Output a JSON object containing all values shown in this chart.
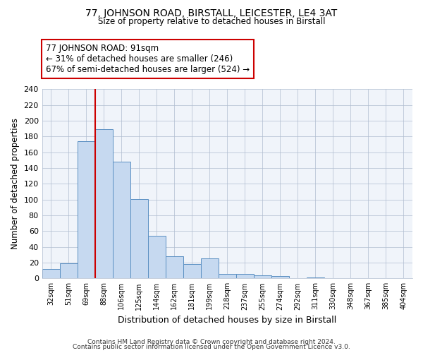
{
  "title1": "77, JOHNSON ROAD, BIRSTALL, LEICESTER, LE4 3AT",
  "title2": "Size of property relative to detached houses in Birstall",
  "xlabel": "Distribution of detached houses by size in Birstall",
  "ylabel": "Number of detached properties",
  "bin_labels": [
    "32sqm",
    "51sqm",
    "69sqm",
    "88sqm",
    "106sqm",
    "125sqm",
    "144sqm",
    "162sqm",
    "181sqm",
    "199sqm",
    "218sqm",
    "237sqm",
    "255sqm",
    "274sqm",
    "292sqm",
    "311sqm",
    "330sqm",
    "348sqm",
    "367sqm",
    "385sqm",
    "404sqm"
  ],
  "bar_heights": [
    12,
    19,
    174,
    189,
    148,
    101,
    54,
    28,
    18,
    25,
    6,
    6,
    4,
    3,
    0,
    1,
    0,
    0,
    0,
    0,
    0
  ],
  "bar_color": "#c6d9f0",
  "bar_edge_color": "#5a8fc2",
  "highlight_color": "#cc0000",
  "annotation_title": "77 JOHNSON ROAD: 91sqm",
  "annotation_line1": "← 31% of detached houses are smaller (246)",
  "annotation_line2": "67% of semi-detached houses are larger (524) →",
  "annotation_box_color": "#ffffff",
  "annotation_box_edge": "#cc0000",
  "ylim": [
    0,
    240
  ],
  "yticks": [
    0,
    20,
    40,
    60,
    80,
    100,
    120,
    140,
    160,
    180,
    200,
    220,
    240
  ],
  "footer1": "Contains HM Land Registry data © Crown copyright and database right 2024.",
  "footer2": "Contains public sector information licensed under the Open Government Licence v3.0."
}
